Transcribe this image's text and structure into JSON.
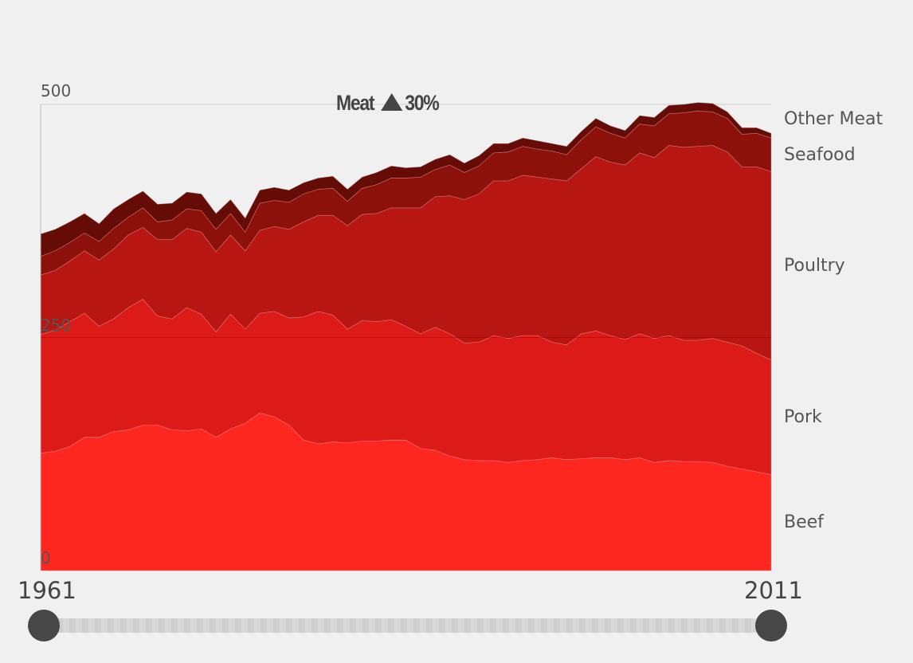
{
  "chart_data": {
    "type": "area",
    "stacked": true,
    "title": "Meat",
    "change_indicator": "up-triangle",
    "change_label": "30%",
    "x_start": 1961,
    "x_end": 2011,
    "x": [
      1961,
      1962,
      1963,
      1964,
      1965,
      1966,
      1967,
      1968,
      1969,
      1970,
      1971,
      1972,
      1973,
      1974,
      1975,
      1976,
      1977,
      1978,
      1979,
      1980,
      1981,
      1982,
      1983,
      1984,
      1985,
      1986,
      1987,
      1988,
      1989,
      1990,
      1991,
      1992,
      1993,
      1994,
      1995,
      1996,
      1997,
      1998,
      1999,
      2000,
      2001,
      2002,
      2003,
      2004,
      2005,
      2006,
      2007,
      2008,
      2009,
      2010,
      2011
    ],
    "ylim": [
      0,
      500
    ],
    "yticks": [
      "0",
      "250",
      "500"
    ],
    "ytick_values": [
      0,
      250,
      500
    ],
    "grid": true,
    "legend": "right",
    "series": [
      {
        "name": "Beef",
        "color": "#fe2720",
        "values": [
          126,
          128,
          133,
          143,
          143,
          149,
          151,
          156,
          156,
          151,
          150,
          152,
          143,
          152,
          158,
          169,
          165,
          156,
          140,
          136,
          138,
          137,
          139,
          139,
          140,
          140,
          131,
          129,
          123,
          119,
          118,
          118,
          116,
          118,
          119,
          121,
          119,
          120,
          121,
          121,
          119,
          121,
          116,
          118,
          117,
          117,
          116,
          112,
          109,
          106,
          103
        ]
      },
      {
        "name": "Pork",
        "color": "#dc1b18",
        "values": [
          127,
          130,
          134,
          133,
          119,
          121,
          131,
          135,
          117,
          119,
          132,
          123,
          113,
          123,
          101,
          107,
          113,
          115,
          132,
          142,
          136,
          122,
          129,
          128,
          129,
          122,
          123,
          132,
          131,
          125,
          127,
          134,
          133,
          134,
          133,
          124,
          123,
          134,
          136,
          131,
          129,
          133,
          133,
          134,
          130,
          130,
          133,
          133,
          132,
          127,
          123
        ]
      },
      {
        "name": "Poultry",
        "color": "#b71613",
        "values": [
          64,
          64,
          65,
          67,
          71,
          75,
          78,
          77,
          82,
          85,
          85,
          88,
          86,
          85,
          84,
          89,
          91,
          95,
          102,
          103,
          107,
          111,
          114,
          116,
          120,
          127,
          135,
          140,
          148,
          154,
          159,
          166,
          169,
          172,
          170,
          175,
          176,
          177,
          187,
          186,
          187,
          194,
          194,
          204,
          207,
          208,
          207,
          204,
          192,
          200,
          202
        ]
      },
      {
        "name": "Seafood",
        "color": "#8c110b",
        "values": [
          20,
          21,
          20,
          19,
          20,
          22,
          19,
          21,
          19,
          21,
          21,
          23,
          24,
          23,
          20,
          29,
          28,
          29,
          30,
          28,
          29,
          26,
          28,
          31,
          32,
          32,
          33,
          29,
          33,
          29,
          30,
          30,
          31,
          31,
          30,
          30,
          28,
          31,
          32,
          31,
          29,
          31,
          34,
          34,
          37,
          38,
          36,
          36,
          35,
          36,
          36
        ]
      },
      {
        "name": "Other Meat",
        "color": "#640c05",
        "values": [
          24,
          23,
          22,
          21,
          19,
          21,
          19,
          18,
          19,
          18,
          18,
          18,
          17,
          15,
          15,
          14,
          14,
          13,
          12,
          12,
          13,
          13,
          12,
          13,
          13,
          11,
          11,
          11,
          11,
          10,
          11,
          10,
          9,
          9,
          9,
          8,
          9,
          9,
          9,
          8,
          8,
          9,
          9,
          9,
          9,
          9,
          9,
          7,
          7,
          6,
          5
        ]
      }
    ]
  },
  "slider": {
    "start_label": "1961",
    "end_label": "2011"
  }
}
